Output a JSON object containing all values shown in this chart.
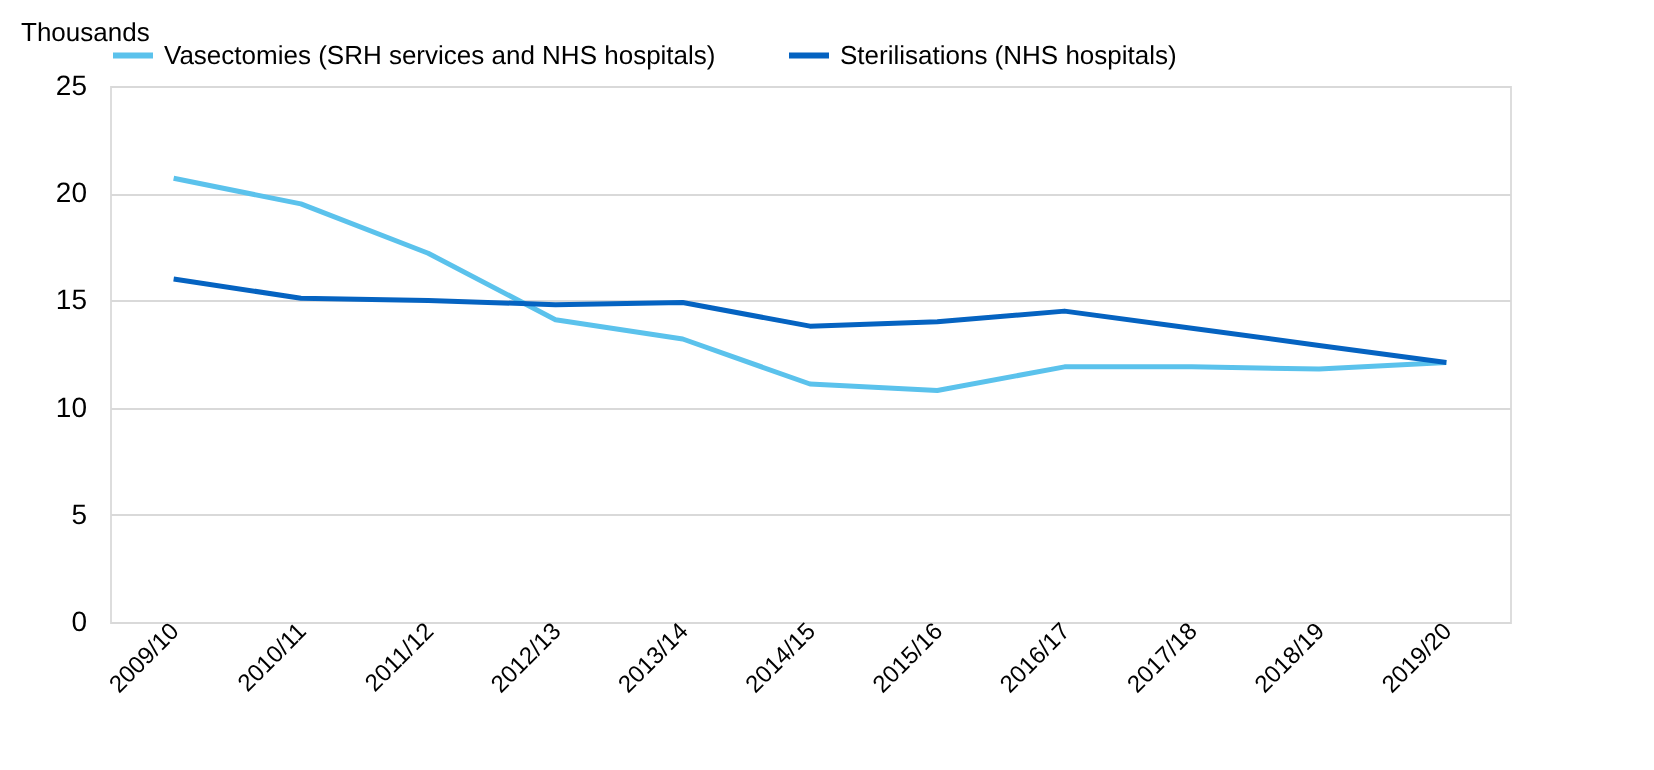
{
  "chart_data": {
    "type": "line",
    "ylabel": "Thousands",
    "categories": [
      "2009/10",
      "2010/11",
      "2011/12",
      "2012/13",
      "2013/14",
      "2014/15",
      "2015/16",
      "2016/17",
      "2017/18",
      "2018/19",
      "2019/20"
    ],
    "series": [
      {
        "name": "Vasectomies (SRH services and NHS hospitals)",
        "color": "#5bc2ec",
        "values": [
          20.7,
          19.5,
          17.2,
          14.1,
          13.2,
          11.1,
          10.8,
          11.9,
          11.9,
          11.8,
          12.1
        ]
      },
      {
        "name": "Sterilisations (NHS hospitals)",
        "color": "#0563c1",
        "values": [
          16.0,
          15.1,
          15.0,
          14.8,
          14.9,
          13.8,
          14.0,
          14.5,
          13.7,
          12.9,
          12.1
        ]
      }
    ],
    "ylim": [
      0,
      25
    ],
    "yticks": [
      0,
      5,
      10,
      15,
      20,
      25
    ],
    "grid": "y",
    "legend": "top",
    "marker": "none"
  }
}
